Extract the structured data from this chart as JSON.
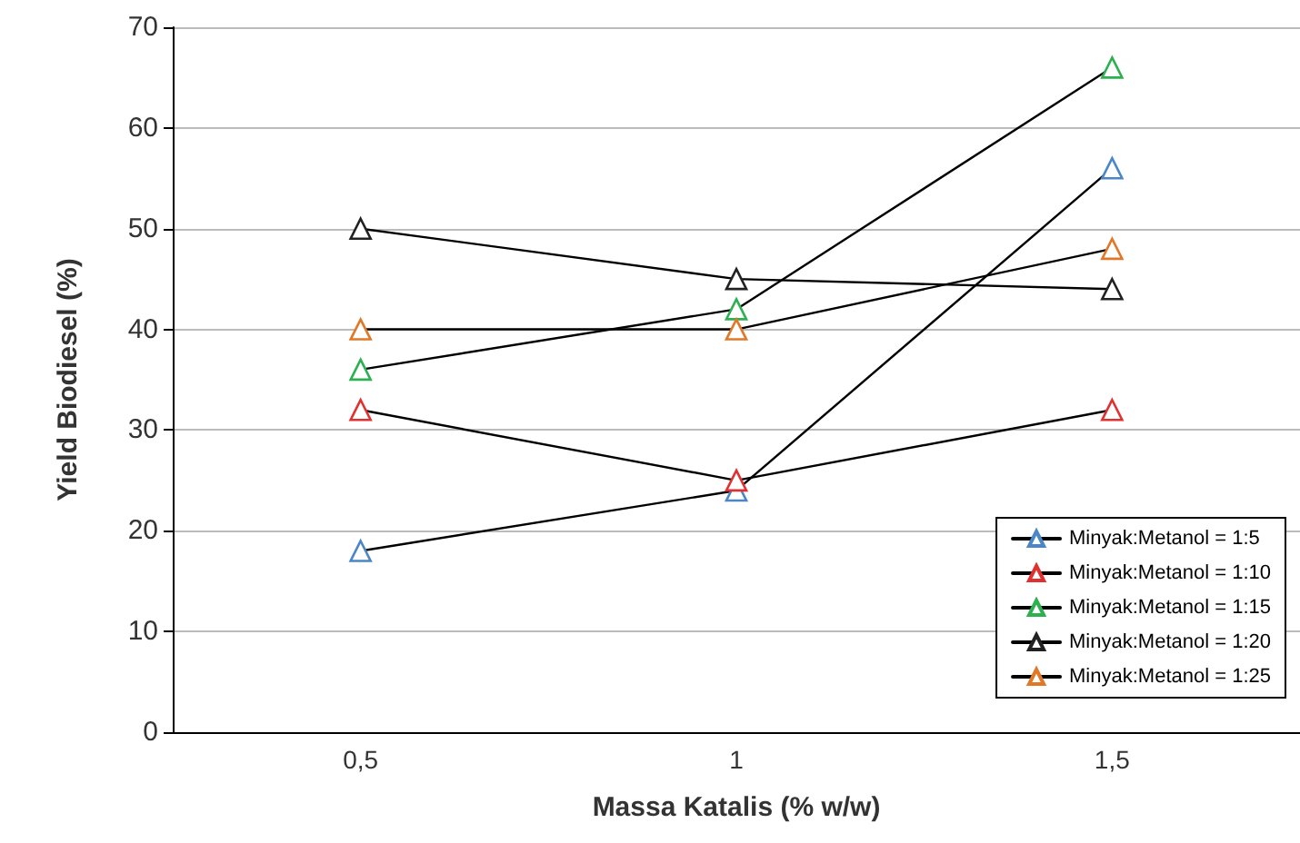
{
  "chart_data": {
    "type": "line",
    "xlabel": "Massa Katalis (% w/w)",
    "ylabel": "Yield Biodiesel (%)",
    "categories": [
      "0,5",
      "1",
      "1,5"
    ],
    "series": [
      {
        "name": "Minyak:Metanol = 1:5",
        "color": "#4a86c8",
        "values": [
          18,
          24,
          56
        ]
      },
      {
        "name": "Minyak:Metanol = 1:10",
        "color": "#e03030",
        "values": [
          32,
          25,
          32
        ]
      },
      {
        "name": "Minyak:Metanol = 1:15",
        "color": "#2cb050",
        "values": [
          36,
          42,
          66
        ]
      },
      {
        "name": "Minyak:Metanol = 1:20",
        "color": "#222222",
        "values": [
          50,
          45,
          44
        ]
      },
      {
        "name": "Minyak:Metanol = 1:25",
        "color": "#e07828",
        "values": [
          40,
          40,
          48
        ]
      }
    ],
    "ylim": [
      0,
      70
    ],
    "yticks": [
      0,
      10,
      20,
      30,
      40,
      50,
      60,
      70
    ],
    "grid": "y",
    "legend": "bottom right",
    "marker": "triangle",
    "line_style": "solid"
  }
}
